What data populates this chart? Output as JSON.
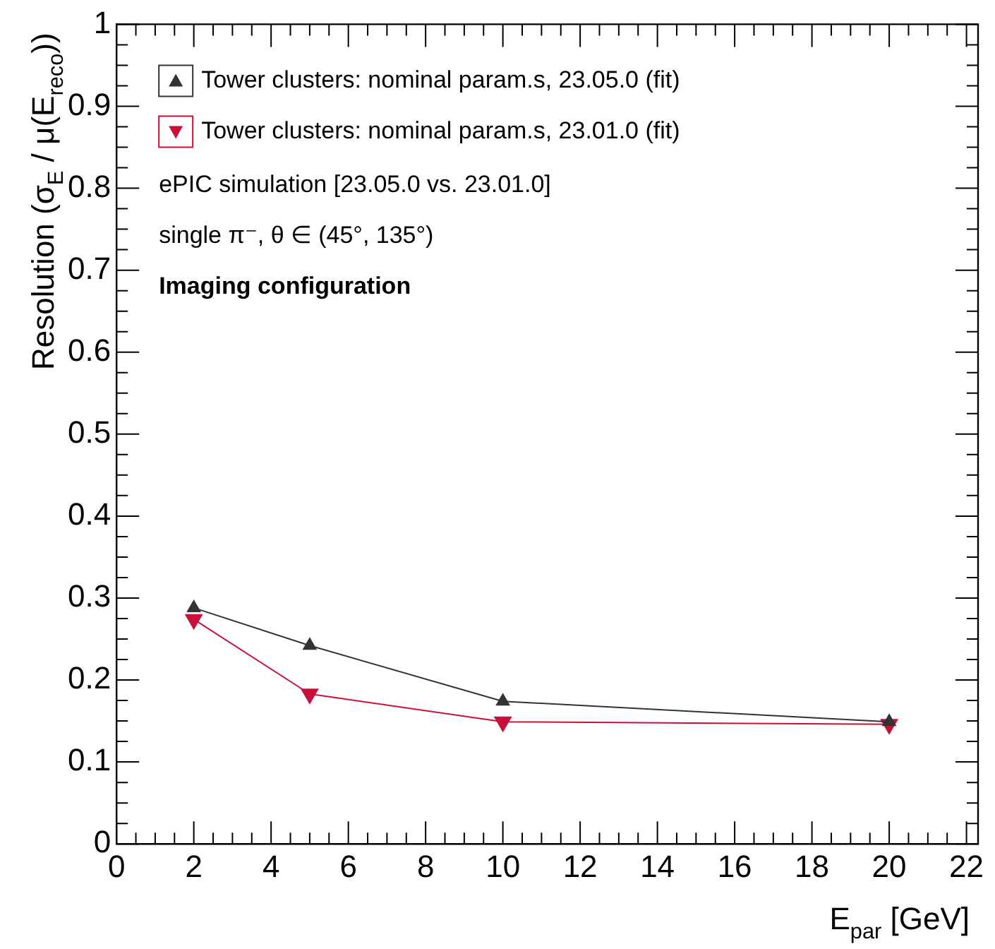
{
  "chart_data": {
    "type": "line",
    "xlabel": "E$_{par}$ [GeV]",
    "ylabel": "Resolution (σ$_{E}$ / μ(E$_{reco}$))",
    "x": [
      2,
      5,
      10,
      20
    ],
    "series": [
      {
        "name": "Tower clusters: nominal param.s, 23.05.0 (fit)",
        "color": "#333333",
        "values": [
          0.288,
          0.242,
          0.174,
          0.149
        ]
      },
      {
        "name": "Tower clusters: nominal param.s, 23.01.0 (fit)",
        "color": "#c8103a",
        "values": [
          0.274,
          0.183,
          0.149,
          0.146
        ]
      }
    ],
    "xlim": [
      0,
      22.3
    ],
    "xticks": [
      0,
      2,
      4,
      6,
      8,
      10,
      12,
      14,
      16,
      18,
      20,
      22
    ],
    "ylim": [
      0,
      1
    ],
    "yticks": [
      0,
      0.1,
      0.2,
      0.3,
      0.4,
      0.5,
      0.6,
      0.7,
      0.8,
      0.9,
      1
    ],
    "annotations": [
      "ePIC simulation [23.05.0 vs. 23.01.0]",
      "single π⁻, θ ∈ (45°, 135°)",
      "Imaging configuration"
    ],
    "legend": "top left",
    "marker": "triangle",
    "line_style": "solid",
    "grid": false
  }
}
